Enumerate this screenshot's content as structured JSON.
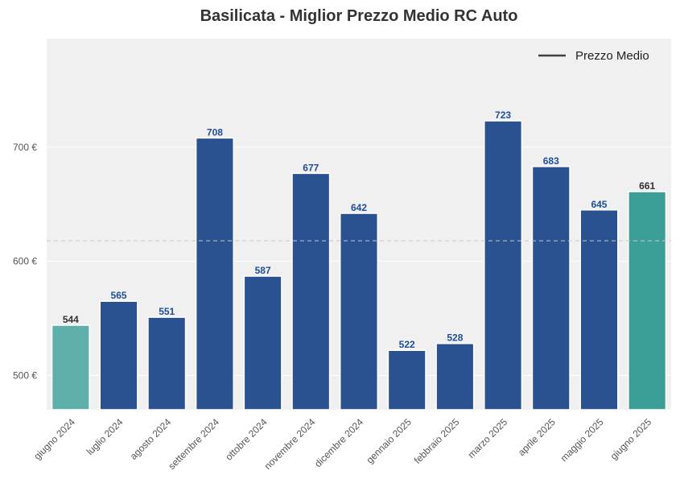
{
  "chart_data": {
    "type": "bar",
    "title": "Basilicata - Miglior Prezzo Medio RC Auto",
    "categories": [
      "giugno 2024",
      "luglio 2024",
      "agosto 2024",
      "settembre 2024",
      "ottobre 2024",
      "novembre 2024",
      "dicembre 2024",
      "gennaio 2025",
      "febbraio 2025",
      "marzo 2025",
      "aprile 2025",
      "maggio 2025",
      "giugno 2025"
    ],
    "values": [
      544,
      565,
      551,
      708,
      587,
      677,
      642,
      522,
      528,
      723,
      683,
      645,
      661
    ],
    "value_labels": [
      "544",
      "565",
      "551",
      "708",
      "587",
      "677",
      "642",
      "522",
      "528",
      "723",
      "683",
      "645",
      "661"
    ],
    "bar_colors": [
      "#5fb0aa",
      "#2a5190",
      "#2a5190",
      "#2a5190",
      "#2a5190",
      "#2a5190",
      "#2a5190",
      "#2a5190",
      "#2a5190",
      "#2a5190",
      "#2a5190",
      "#2a5190",
      "#3b9e97"
    ],
    "label_colors": [
      "#333333",
      "#1f4e96",
      "#1f4e96",
      "#1f4e96",
      "#1f4e96",
      "#1f4e96",
      "#1f4e96",
      "#1f4e96",
      "#1f4e96",
      "#1f4e96",
      "#1f4e96",
      "#1f4e96",
      "#333333"
    ],
    "mean_line": 618,
    "ylim": [
      470,
      795
    ],
    "yticks": [
      500,
      600,
      700
    ],
    "ytick_labels": [
      "500 €",
      "600 €",
      "700 €"
    ],
    "legend": {
      "label": "Prezzo Medio",
      "position": "top-right"
    },
    "grid": true,
    "background": "#f0f0f0",
    "xlabel": "",
    "ylabel": ""
  }
}
